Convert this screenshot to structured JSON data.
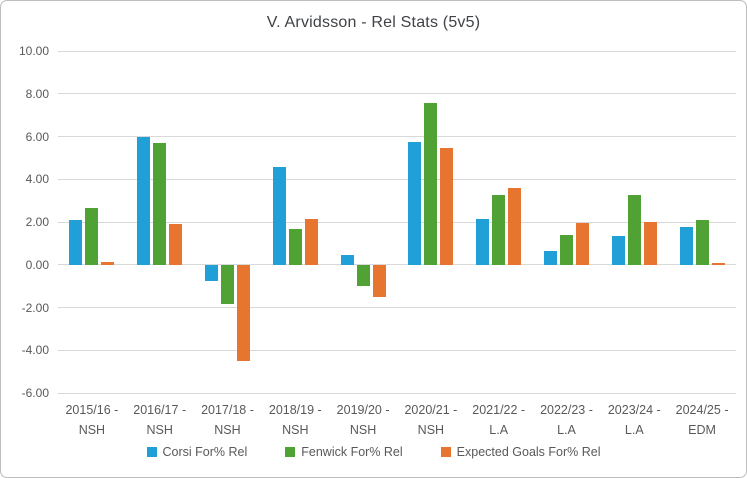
{
  "window": {
    "background_color": "#ffffff",
    "border_color": "#bdbdbd"
  },
  "colors": {
    "gridline": "#d9d9d9",
    "axis_text": "#595959",
    "title_text": "#3f4246"
  },
  "chart_data": {
    "type": "bar",
    "title": "V. Arvidsson - Rel Stats (5v5)",
    "categories": [
      "2015/16 - NSH",
      "2016/17 - NSH",
      "2017/18 - NSH",
      "2018/19 - NSH",
      "2019/20 - NSH",
      "2020/21 - NSH",
      "2021/22 - L.A",
      "2022/23 - L.A",
      "2023/24 - L.A",
      "2024/25 - EDM"
    ],
    "category_lines": [
      [
        "2015/16 -",
        "NSH"
      ],
      [
        "2016/17 -",
        "NSH"
      ],
      [
        "2017/18 -",
        "NSH"
      ],
      [
        "2018/19 -",
        "NSH"
      ],
      [
        "2019/20 -",
        "NSH"
      ],
      [
        "2020/21 -",
        "NSH"
      ],
      [
        "2021/22 -",
        "L.A"
      ],
      [
        "2022/23 -",
        "L.A"
      ],
      [
        "2023/24 -",
        "L.A"
      ],
      [
        "2024/25 -",
        "EDM"
      ]
    ],
    "series": [
      {
        "key": "corsi",
        "name": "Corsi For% Rel",
        "color": "#219fd7",
        "values": [
          2.1,
          6.0,
          -0.75,
          4.55,
          0.45,
          5.75,
          2.15,
          0.65,
          1.35,
          1.75
        ]
      },
      {
        "key": "fenwick",
        "name": "Fenwick For% Rel",
        "color": "#4fa233",
        "values": [
          2.65,
          5.7,
          -1.85,
          1.65,
          -1.0,
          7.55,
          3.25,
          1.4,
          3.25,
          2.1
        ]
      },
      {
        "key": "xg",
        "name": "Expected Goals For% Rel",
        "color": "#e8752f",
        "values": [
          0.15,
          1.9,
          -4.5,
          2.15,
          -1.5,
          5.45,
          3.6,
          1.95,
          2.0,
          0.1
        ]
      }
    ],
    "y_axis": {
      "min": -6,
      "max": 10,
      "step": 2,
      "tick_labels": [
        "10.00",
        "8.00",
        "6.00",
        "4.00",
        "2.00",
        "0.00",
        "-2.00",
        "-4.00",
        "-6.00"
      ]
    },
    "grid": true,
    "legend_position": "bottom"
  }
}
